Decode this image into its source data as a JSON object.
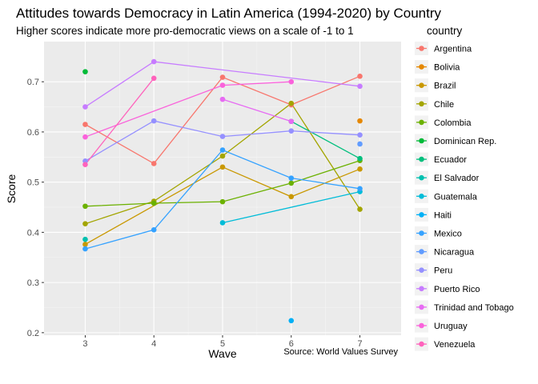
{
  "chart_data": {
    "type": "line",
    "title": "Attitudes towards Democracy in Latin America (1994-2020) by Country",
    "subtitle": "Higher scores indicate more pro-democratic views on a scale of -1 to 1",
    "xlabel": "Wave",
    "ylabel": "Score",
    "caption": "Source: World Values Survey",
    "legend_title": "country",
    "legend_position": "right",
    "grid": true,
    "x_ticks": [
      3,
      4,
      5,
      6,
      7
    ],
    "x_tick_labels": [
      "3",
      "4",
      "5",
      "6",
      "7"
    ],
    "y_ticks": [
      0.2,
      0.3,
      0.4,
      0.5,
      0.6,
      0.7
    ],
    "y_tick_labels": [
      "0.2",
      "0.3",
      "0.4",
      "0.5",
      "0.6",
      "0.7"
    ],
    "xlim": [
      2.4,
      7.6
    ],
    "ylim": [
      0.195,
      0.78
    ],
    "series": [
      {
        "name": "Argentina",
        "color": "#F8766D",
        "points": [
          [
            3,
            0.615
          ],
          [
            4,
            0.537
          ],
          [
            5,
            0.709
          ],
          [
            6,
            0.654
          ],
          [
            7,
            0.711
          ]
        ]
      },
      {
        "name": "Bolivia",
        "color": "#E58700",
        "points": [
          [
            7,
            0.622
          ]
        ]
      },
      {
        "name": "Brazil",
        "color": "#C99800",
        "points": [
          [
            3,
            0.376
          ],
          [
            5,
            0.53
          ],
          [
            6,
            0.471
          ],
          [
            7,
            0.526
          ]
        ]
      },
      {
        "name": "Chile",
        "color": "#A3A500",
        "points": [
          [
            3,
            0.417
          ],
          [
            4,
            0.462
          ],
          [
            5,
            0.552
          ],
          [
            6,
            0.657
          ],
          [
            7,
            0.446
          ]
        ]
      },
      {
        "name": "Colombia",
        "color": "#6BB100",
        "points": [
          [
            3,
            0.452
          ],
          [
            4,
            0.458
          ],
          [
            5,
            0.461
          ],
          [
            6,
            0.498
          ],
          [
            7,
            0.543
          ]
        ]
      },
      {
        "name": "Dominican Rep.",
        "color": "#00BA38",
        "points": [
          [
            3,
            0.72
          ]
        ]
      },
      {
        "name": "Ecuador",
        "color": "#00BF7D",
        "points": [
          [
            6,
            0.621
          ],
          [
            7,
            0.547
          ]
        ]
      },
      {
        "name": "El Salvador",
        "color": "#00C0AF",
        "points": [
          [
            3,
            0.386
          ]
        ]
      },
      {
        "name": "Guatemala",
        "color": "#00BCD8",
        "points": [
          [
            5,
            0.419
          ],
          [
            7,
            0.481
          ]
        ]
      },
      {
        "name": "Haiti",
        "color": "#00B0F6",
        "points": [
          [
            6,
            0.224
          ]
        ]
      },
      {
        "name": "Mexico",
        "color": "#35A2FF",
        "points": [
          [
            3,
            0.367
          ],
          [
            4,
            0.405
          ],
          [
            5,
            0.564
          ],
          [
            6,
            0.508
          ],
          [
            7,
            0.487
          ]
        ]
      },
      {
        "name": "Nicaragua",
        "color": "#619CFF",
        "points": [
          [
            7,
            0.576
          ]
        ]
      },
      {
        "name": "Peru",
        "color": "#9590FF",
        "points": [
          [
            3,
            0.542
          ],
          [
            4,
            0.622
          ],
          [
            5,
            0.591
          ],
          [
            6,
            0.602
          ],
          [
            7,
            0.594
          ]
        ]
      },
      {
        "name": "Puerto Rico",
        "color": "#C77CFF",
        "points": [
          [
            3,
            0.65
          ],
          [
            4,
            0.74
          ],
          [
            7,
            0.691
          ]
        ]
      },
      {
        "name": "Trinidad and Tobago",
        "color": "#E76BF3",
        "points": [
          [
            5,
            0.665
          ],
          [
            6,
            0.621
          ]
        ]
      },
      {
        "name": "Uruguay",
        "color": "#FA62DB",
        "points": [
          [
            3,
            0.59
          ],
          [
            5,
            0.693
          ],
          [
            6,
            0.7
          ]
        ]
      },
      {
        "name": "Venezuela",
        "color": "#FF62BC",
        "points": [
          [
            3,
            0.535
          ],
          [
            4,
            0.707
          ]
        ]
      }
    ]
  }
}
